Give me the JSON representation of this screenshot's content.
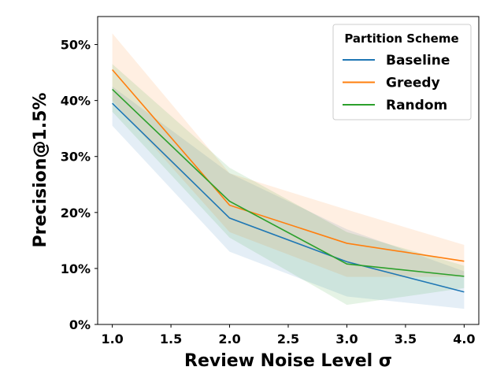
{
  "chart_data": {
    "type": "line",
    "title": "",
    "xlabel": "Review Noise Level σ",
    "ylabel": "Precision@1.5%",
    "xlim": [
      0.875,
      4.125
    ],
    "ylim": [
      0,
      55
    ],
    "x": [
      1.0,
      2.0,
      3.0,
      4.0
    ],
    "xticks": [
      "1.0",
      "1.5",
      "2.0",
      "2.5",
      "3.0",
      "3.5",
      "4.0"
    ],
    "xtick_values": [
      1.0,
      1.5,
      2.0,
      2.5,
      3.0,
      3.5,
      4.0
    ],
    "yticks": [
      "0%",
      "10%",
      "20%",
      "30%",
      "40%",
      "50%"
    ],
    "ytick_values": [
      0,
      10,
      20,
      30,
      40,
      50
    ],
    "grid": false,
    "legend": {
      "title": "Partition Scheme",
      "position": "top-right"
    },
    "series": [
      {
        "name": "Baseline",
        "color": "#1f77b4",
        "values": [
          39.5,
          19.0,
          11.2,
          5.8
        ],
        "lower": [
          35.5,
          13.0,
          5.0,
          2.8
        ],
        "upper": [
          42.5,
          27.0,
          17.0,
          9.5
        ]
      },
      {
        "name": "Greedy",
        "color": "#ff7f0e",
        "values": [
          45.5,
          21.3,
          14.5,
          11.3
        ],
        "lower": [
          40.0,
          16.5,
          8.5,
          8.5
        ],
        "upper": [
          52.0,
          27.0,
          20.5,
          14.2
        ]
      },
      {
        "name": "Random",
        "color": "#2ca02c",
        "values": [
          42.0,
          22.0,
          10.8,
          8.6
        ],
        "lower": [
          38.0,
          15.5,
          3.5,
          6.5
        ],
        "upper": [
          46.5,
          28.0,
          16.5,
          10.5
        ]
      }
    ]
  }
}
